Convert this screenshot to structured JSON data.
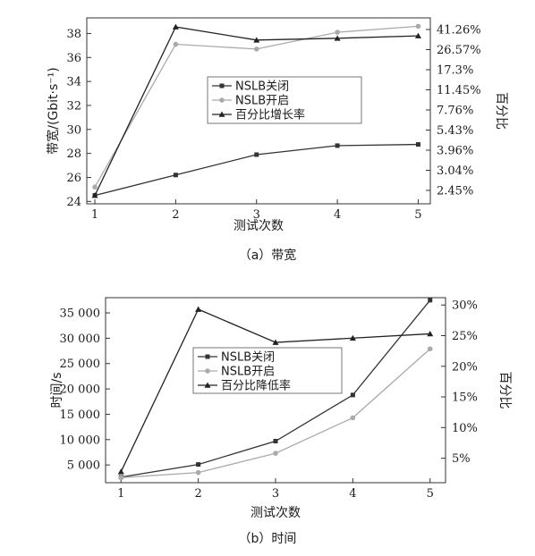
{
  "chart_data": [
    {
      "type": "line",
      "caption": "（a）带宽",
      "xlabel": "测试次数",
      "ylabel": "带宽/(Gbit·s⁻¹)",
      "y2label": "百分比",
      "x": [
        1,
        2,
        3,
        4,
        5
      ],
      "xlim": [
        0.9,
        5.15
      ],
      "ylim": [
        23.8,
        39.3
      ],
      "yticks": [
        24,
        26,
        28,
        30,
        32,
        34,
        36,
        38
      ],
      "y2ticks": [
        "2.45%",
        "3.04%",
        "3.96%",
        "5.43%",
        "7.76%",
        "11.45%",
        "17.3%",
        "26.57%",
        "41.26%"
      ],
      "legend_position": "center",
      "series": [
        {
          "name": "NSLB关闭",
          "axis": "left",
          "marker": "square",
          "color": "#333333",
          "values": [
            24.5,
            26.2,
            27.9,
            28.65,
            28.75
          ]
        },
        {
          "name": "NSLB开启",
          "axis": "left",
          "marker": "circle",
          "color": "#aaaaaa",
          "values": [
            25.2,
            37.1,
            36.7,
            38.1,
            38.6
          ]
        },
        {
          "name": "百分比增长率",
          "axis": "left",
          "marker": "triangle",
          "color": "#222222",
          "values": [
            24.5,
            38.55,
            37.45,
            37.6,
            37.8
          ]
        }
      ]
    },
    {
      "type": "line",
      "caption": "（b）时间",
      "xlabel": "测试次数",
      "ylabel": "时间/s",
      "y2label": "百分比",
      "x": [
        1,
        2,
        3,
        4,
        5
      ],
      "xlim": [
        0.8,
        5.2
      ],
      "ylim": [
        1500,
        38000
      ],
      "yticks": [
        5000,
        10000,
        15000,
        20000,
        25000,
        30000,
        35000
      ],
      "ytick_labels": [
        "5 000",
        "10 000",
        "15 000",
        "20 000",
        "25 000",
        "30 000",
        "35 000"
      ],
      "y2lim": [
        1,
        31.2
      ],
      "y2ticks": [
        5,
        10,
        15,
        20,
        25,
        30
      ],
      "y2tick_labels": [
        "5%",
        "10%",
        "15%",
        "20%",
        "25%",
        "30%"
      ],
      "legend_position": "center",
      "series": [
        {
          "name": "NSLB关闭",
          "axis": "left",
          "marker": "square",
          "color": "#333333",
          "values": [
            2600,
            5100,
            9700,
            18800,
            37500
          ]
        },
        {
          "name": "NSLB开启",
          "axis": "left",
          "marker": "circle",
          "color": "#aaaaaa",
          "values": [
            2500,
            3500,
            7300,
            14300,
            27900
          ]
        },
        {
          "name": "百分比降低率",
          "axis": "right",
          "marker": "triangle",
          "color": "#222222",
          "values": [
            2.8,
            29.3,
            23.9,
            24.6,
            25.3
          ]
        }
      ]
    }
  ]
}
